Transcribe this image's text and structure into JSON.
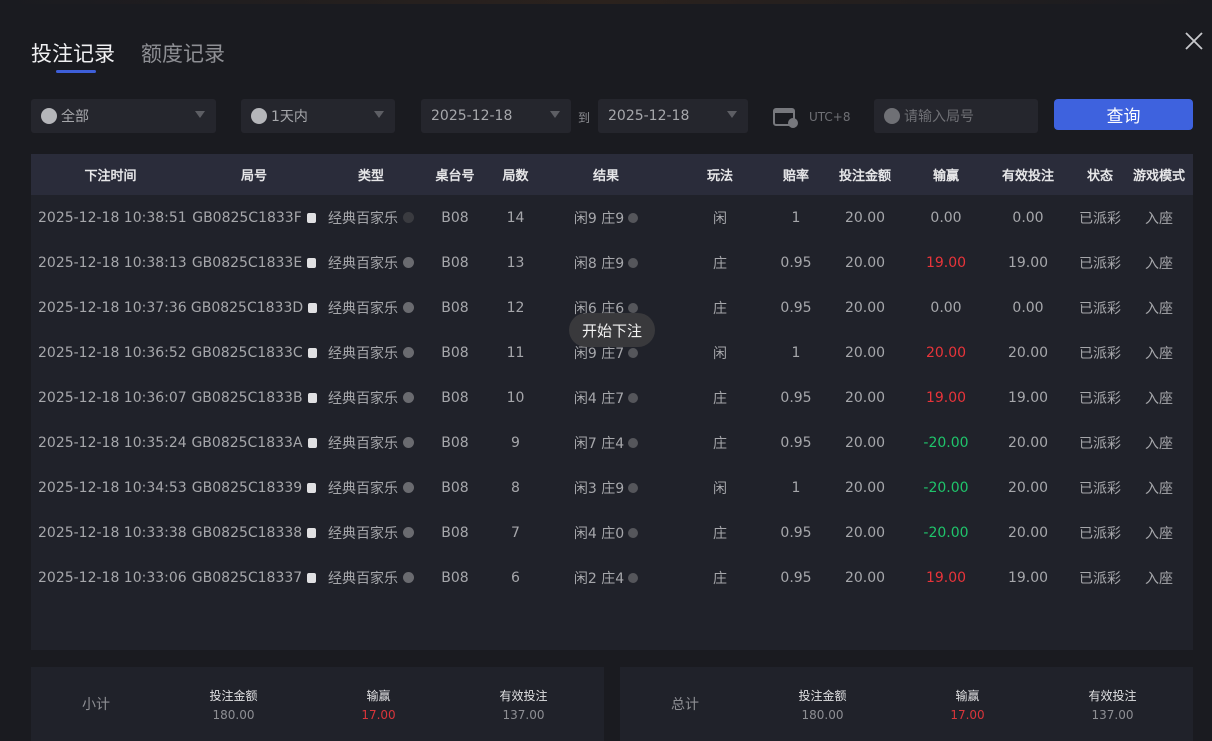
{
  "tabs": [
    {
      "label": "投注记录",
      "active": true
    },
    {
      "label": "额度记录",
      "active": false
    }
  ],
  "filters": {
    "game": "全部",
    "period": "1天内",
    "date_from": "2025-12-18",
    "to_label": "到",
    "date_to": "2025-12-18",
    "timezone": "UTC+8",
    "round_placeholder": "请输入局号",
    "query_button": "查询"
  },
  "table": {
    "headers": [
      "下注时间",
      "局号",
      "类型",
      "桌台号",
      "局数",
      "结果",
      "玩法",
      "赔率",
      "投注金额",
      "输赢",
      "有效投注",
      "状态",
      "游戏模式"
    ],
    "rows": [
      [
        "2025-12-18 10:38:51",
        "GB0825C1833F",
        "经典百家乐",
        "B08",
        "14",
        "闲9 庄9",
        "闲",
        "1",
        "20.00",
        "0.00",
        "0.00",
        "已派彩",
        "入座"
      ],
      [
        "2025-12-18 10:38:13",
        "GB0825C1833E",
        "经典百家乐",
        "B08",
        "13",
        "闲8 庄9",
        "庄",
        "0.95",
        "20.00",
        "19.00",
        "19.00",
        "已派彩",
        "入座"
      ],
      [
        "2025-12-18 10:37:36",
        "GB0825C1833D",
        "经典百家乐",
        "B08",
        "12",
        "闲6 庄6",
        "庄",
        "0.95",
        "20.00",
        "0.00",
        "0.00",
        "已派彩",
        "入座"
      ],
      [
        "2025-12-18 10:36:52",
        "GB0825C1833C",
        "经典百家乐",
        "B08",
        "11",
        "闲9 庄7",
        "闲",
        "1",
        "20.00",
        "20.00",
        "20.00",
        "已派彩",
        "入座"
      ],
      [
        "2025-12-18 10:36:07",
        "GB0825C1833B",
        "经典百家乐",
        "B08",
        "10",
        "闲4 庄7",
        "庄",
        "0.95",
        "20.00",
        "19.00",
        "19.00",
        "已派彩",
        "入座"
      ],
      [
        "2025-12-18 10:35:24",
        "GB0825C1833A",
        "经典百家乐",
        "B08",
        "9",
        "闲7 庄4",
        "庄",
        "0.95",
        "20.00",
        "-20.00",
        "20.00",
        "已派彩",
        "入座"
      ],
      [
        "2025-12-18 10:34:53",
        "GB0825C18339",
        "经典百家乐",
        "B08",
        "8",
        "闲3 庄9",
        "闲",
        "1",
        "20.00",
        "-20.00",
        "20.00",
        "已派彩",
        "入座"
      ],
      [
        "2025-12-18 10:33:38",
        "GB0825C18338",
        "经典百家乐",
        "B08",
        "7",
        "闲4 庄0",
        "庄",
        "0.95",
        "20.00",
        "-20.00",
        "20.00",
        "已派彩",
        "入座"
      ],
      [
        "2025-12-18 10:33:06",
        "GB0825C18337",
        "经典百家乐",
        "B08",
        "6",
        "闲2 庄4",
        "庄",
        "0.95",
        "20.00",
        "19.00",
        "19.00",
        "已派彩",
        "入座"
      ]
    ]
  },
  "tooltip": "开始下注",
  "subtotal": {
    "label": "小计",
    "bet_label": "投注金额",
    "bet": "180.00",
    "win_label": "输赢",
    "win": "17.00",
    "valid_label": "有效投注",
    "valid": "137.00"
  },
  "total": {
    "label": "总计",
    "bet_label": "投注金额",
    "bet": "180.00",
    "win_label": "输赢",
    "win": "17.00",
    "valid_label": "有效投注",
    "valid": "137.00"
  },
  "colors": {
    "accent": "#3e62de",
    "win": "#e8343a",
    "loss": "#1fc46b"
  }
}
